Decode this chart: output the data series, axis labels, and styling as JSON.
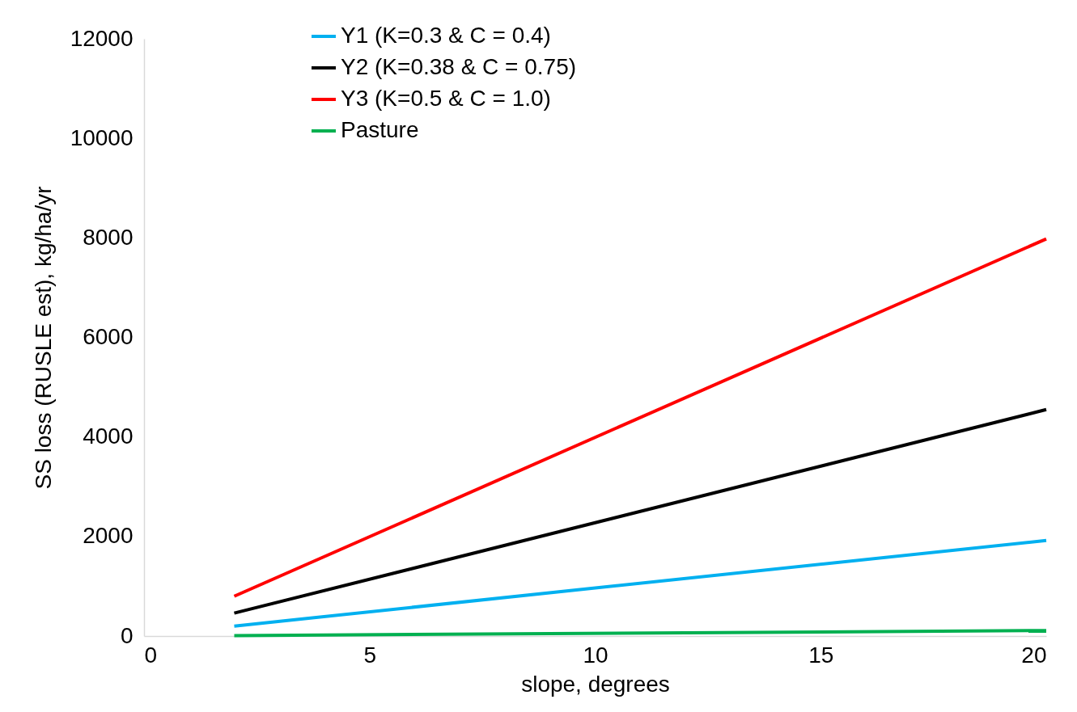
{
  "chart_data": {
    "type": "line",
    "xlabel": "slope, degrees",
    "ylabel": "SS loss (RUSLE est), kg/ha/yr",
    "xlim": [
      0,
      20
    ],
    "xticks": [
      0,
      5,
      10,
      15,
      20
    ],
    "ylim": [
      0,
      12000
    ],
    "yticks": [
      0,
      2000,
      4000,
      6000,
      8000,
      10000,
      12000
    ],
    "grid": false,
    "legend": "top left",
    "marker": "none",
    "line_style": "solid",
    "x": [
      2,
      20
    ],
    "series": [
      {
        "name": "Y1 (K=0.3 & C = 0.4)",
        "color": "#00b0f0",
        "values": [
          200,
          1920
        ]
      },
      {
        "name": "Y2 (K=0.38 & C = 0.75)",
        "color": "#000000",
        "values": [
          460,
          4550
        ]
      },
      {
        "name": "Y3 (K=0.5 & C = 1.0)",
        "color": "#ff0000",
        "values": [
          800,
          7980
        ]
      },
      {
        "name": "Pasture",
        "color": "#00b050",
        "values": [
          10,
          110
        ]
      }
    ]
  }
}
